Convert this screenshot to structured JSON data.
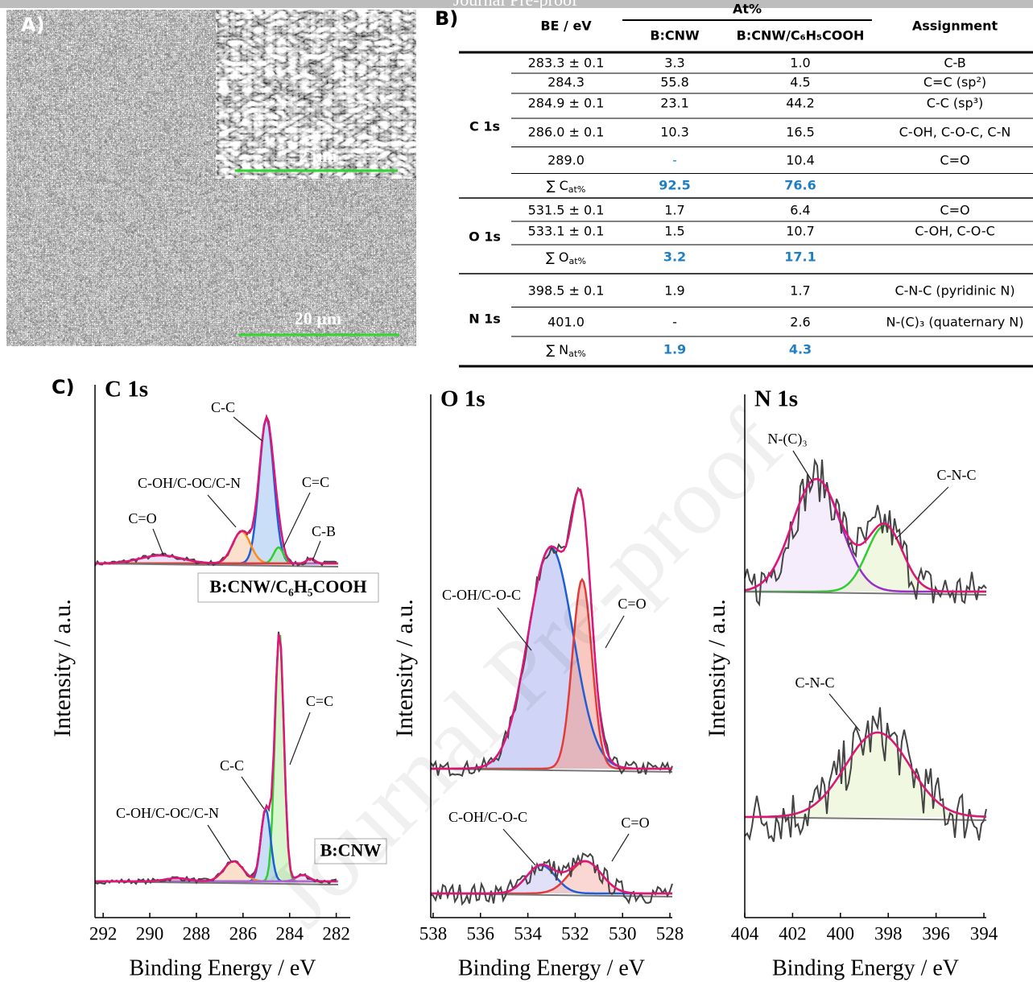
{
  "watermark": "Journal Pre-proof",
  "panel_a": {
    "label": "A)",
    "inset_scale": "2 µm",
    "scale": "20 µm"
  },
  "panel_b": {
    "label": "B)",
    "table": {
      "header": {
        "be": "BE / eV",
        "at": "At%",
        "col1": "B:CNW",
        "col2": "B:CNW/C₆H₅COOH",
        "assignment": "Assignment"
      },
      "groups": [
        {
          "name": "C 1s",
          "rows": [
            [
              "283.3 ± 0.1",
              "3.3",
              "1.0",
              "C-B"
            ],
            [
              "284.3",
              "55.8",
              "4.5",
              "C=C (sp²)"
            ],
            [
              "284.9 ± 0.1",
              "23.1",
              "44.2",
              "C-C (sp³)"
            ],
            [
              "286.0 ± 0.1",
              "10.3",
              "16.5",
              "C-OH, C-O-C, C-N"
            ],
            [
              "289.0",
              "-",
              "10.4",
              "C=O"
            ]
          ],
          "sum": {
            "label": "∑ C",
            "sub": "at%",
            "values": [
              "92.5",
              "76.6"
            ]
          }
        },
        {
          "name": "O 1s",
          "rows": [
            [
              "531.5 ± 0.1",
              "1.7",
              "6.4",
              "C=O"
            ],
            [
              "533.1 ± 0.1",
              "1.5",
              "10.7",
              "C-OH, C-O-C"
            ]
          ],
          "sum": {
            "label": "∑ O",
            "sub": "at%",
            "values": [
              "3.2",
              "17.1"
            ]
          }
        },
        {
          "name": "N 1s",
          "rows": [
            [
              "398.5 ± 0.1",
              "1.9",
              "1.7",
              "C-N-C (pyridinic N)"
            ],
            [
              "401.0",
              "-",
              "2.6",
              "N-(C)₃ (quaternary N)"
            ]
          ],
          "sum": {
            "label": "∑ N",
            "sub": "at%",
            "values": [
              "1.9",
              "4.3"
            ]
          }
        }
      ]
    }
  },
  "panel_c": {
    "label": "C)"
  },
  "chart_data": [
    {
      "type": "line",
      "title": "C 1s",
      "xlabel": "Binding Energy / eV",
      "ylabel": "Intensity / a.u.",
      "xlim": [
        292.35,
        281.4
      ],
      "xticks": [
        292,
        290,
        288,
        286,
        284,
        282
      ],
      "annotations": [
        "C-C",
        "C-OH/C-OC/C-N",
        "C=O",
        "C=C",
        "C-B",
        "C=C",
        "C-C",
        "C-OH/C-OC/C-N"
      ],
      "samples": [
        "B:CNW/C₆H₅COOH",
        "B:CNW"
      ]
    },
    {
      "type": "line",
      "title": "O 1s",
      "xlabel": "Binding Energy / eV",
      "ylabel": "Intensity / a.u.",
      "xlim": [
        538.1,
        527.9
      ],
      "xticks": [
        538,
        536,
        534,
        532,
        530,
        528
      ],
      "annotations": [
        "C-OH/C-O-C",
        "C=O",
        "C-OH/C-O-C",
        "C=O"
      ]
    },
    {
      "type": "line",
      "title": "N 1s",
      "xlabel": "Binding Energy / eV",
      "ylabel": "Intensity / a.u.",
      "xlim": [
        404,
        393.9
      ],
      "xticks": [
        404,
        402,
        400,
        398,
        396,
        394
      ],
      "annotations": [
        "N-(C)₃",
        "C-N-C",
        "C-N-C"
      ]
    }
  ]
}
